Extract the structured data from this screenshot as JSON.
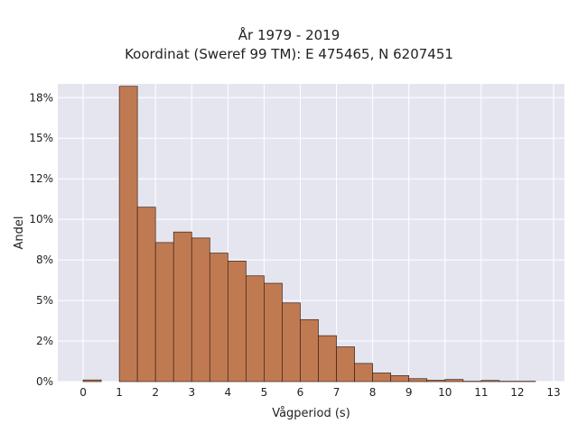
{
  "chart_data": {
    "type": "bar",
    "title": "År 1979 - 2019",
    "subtitle": "Koordinat (Sweref 99 TM): E 475465, N 6207451",
    "xlabel": "Vågperiod (s)",
    "ylabel": "Andel",
    "xlim": [
      -0.7,
      13.3
    ],
    "ylim": [
      0,
      0.1835
    ],
    "x_ticks": [
      0,
      1,
      2,
      3,
      4,
      5,
      6,
      7,
      8,
      9,
      10,
      11,
      12,
      13
    ],
    "y_ticks": [
      {
        "value": 0,
        "label": "0%"
      },
      {
        "value": 0.025,
        "label": "2%"
      },
      {
        "value": 0.05,
        "label": "5%"
      },
      {
        "value": 0.075,
        "label": "8%"
      },
      {
        "value": 0.1,
        "label": "10%"
      },
      {
        "value": 0.125,
        "label": "12%"
      },
      {
        "value": 0.15,
        "label": "15%"
      },
      {
        "value": 0.175,
        "label": "18%"
      }
    ],
    "bin_width": 0.5,
    "bins": [
      {
        "start": 0.0,
        "value": 0.001
      },
      {
        "start": 0.5,
        "value": 0.0
      },
      {
        "start": 1.0,
        "value": 0.182
      },
      {
        "start": 1.5,
        "value": 0.1075
      },
      {
        "start": 2.0,
        "value": 0.0857
      },
      {
        "start": 2.5,
        "value": 0.0922
      },
      {
        "start": 3.0,
        "value": 0.0885
      },
      {
        "start": 3.5,
        "value": 0.0792
      },
      {
        "start": 4.0,
        "value": 0.0743
      },
      {
        "start": 4.5,
        "value": 0.0652
      },
      {
        "start": 5.0,
        "value": 0.0606
      },
      {
        "start": 5.5,
        "value": 0.0485
      },
      {
        "start": 6.0,
        "value": 0.0382
      },
      {
        "start": 6.5,
        "value": 0.0283
      },
      {
        "start": 7.0,
        "value": 0.0214
      },
      {
        "start": 7.5,
        "value": 0.0112
      },
      {
        "start": 8.0,
        "value": 0.0053
      },
      {
        "start": 8.5,
        "value": 0.0037
      },
      {
        "start": 9.0,
        "value": 0.0018
      },
      {
        "start": 9.5,
        "value": 0.0008
      },
      {
        "start": 10.0,
        "value": 0.0013
      },
      {
        "start": 10.5,
        "value": 0.0002
      },
      {
        "start": 11.0,
        "value": 0.0007
      },
      {
        "start": 11.5,
        "value": 0.0002
      },
      {
        "start": 12.0,
        "value": 0.0002
      },
      {
        "start": 12.5,
        "value": 0.0
      }
    ],
    "grid": true,
    "legend": "none",
    "bar_color": "#c07a52",
    "bar_edge_color": "#3b2418",
    "background_color": "#e5e5f0",
    "grid_color": "#ffffff"
  }
}
